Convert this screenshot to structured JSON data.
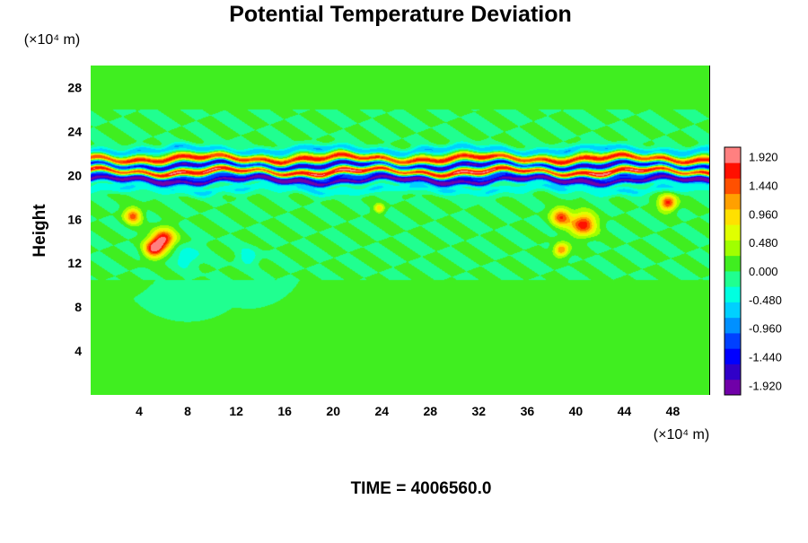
{
  "chart_data": {
    "type": "heatmap",
    "title": "Potential Temperature Deviation",
    "ylabel": "Height",
    "xlabel": "",
    "x_unit": "(×10⁴ m)",
    "y_unit": "(×10⁴ m)",
    "xlim": [
      0,
      51
    ],
    "ylim": [
      0,
      30
    ],
    "x_ticks": [
      "4",
      "8",
      "12",
      "16",
      "20",
      "24",
      "28",
      "32",
      "36",
      "40",
      "44",
      "48"
    ],
    "y_ticks": [
      "4",
      "8",
      "12",
      "16",
      "20",
      "24",
      "28"
    ],
    "colorbar": {
      "min": -2.08,
      "max": 2.08,
      "labels": [
        "1.920",
        "1.440",
        "0.960",
        "0.480",
        "0.000",
        "-0.480",
        "-0.960",
        "-1.440",
        "-1.920"
      ]
    },
    "background_value": 0.0,
    "features": [
      {
        "type": "band",
        "y": 21.5,
        "halfwidth": 0.35,
        "value": 1.7
      },
      {
        "type": "band",
        "y": 20.9,
        "halfwidth": 0.3,
        "value": -1.8
      },
      {
        "type": "band",
        "y": 20.3,
        "halfwidth": 0.35,
        "value": 1.9
      },
      {
        "type": "band",
        "y": 19.9,
        "halfwidth": 0.25,
        "value": -1.4
      },
      {
        "type": "band",
        "y": 19.5,
        "halfwidth": 0.25,
        "value": -1.9
      },
      {
        "type": "band",
        "y": 22.3,
        "halfwidth": 0.35,
        "value": -0.7
      },
      {
        "type": "band",
        "y": 18.7,
        "halfwidth": 0.4,
        "value": -0.5
      },
      {
        "type": "blob",
        "x": 6.0,
        "y": 14.2,
        "r": 0.9,
        "value": 1.9
      },
      {
        "type": "blob",
        "x": 5.2,
        "y": 13.3,
        "r": 0.8,
        "value": 1.7
      },
      {
        "type": "blob",
        "x": 3.5,
        "y": 16.3,
        "r": 0.7,
        "value": 1.4
      },
      {
        "type": "blob",
        "x": 40.6,
        "y": 15.5,
        "r": 1.0,
        "value": 1.8
      },
      {
        "type": "blob",
        "x": 38.8,
        "y": 16.2,
        "r": 0.8,
        "value": 1.5
      },
      {
        "type": "blob",
        "x": 38.8,
        "y": 13.2,
        "r": 0.6,
        "value": 1.4
      },
      {
        "type": "blob",
        "x": 47.6,
        "y": 17.5,
        "r": 0.7,
        "value": 1.7
      },
      {
        "type": "blob",
        "x": 23.8,
        "y": 17.0,
        "r": 0.4,
        "value": 1.0
      },
      {
        "type": "blob",
        "x": 8.0,
        "y": 12.6,
        "r": 1.0,
        "value": -0.5
      },
      {
        "type": "blob",
        "x": 13.0,
        "y": 12.6,
        "r": 0.8,
        "value": -0.45
      }
    ]
  },
  "footer": {
    "time_text": "TIME = 4006560.0"
  },
  "colors": {
    "background": "#ffffff",
    "field_zero": "#33ee22"
  }
}
